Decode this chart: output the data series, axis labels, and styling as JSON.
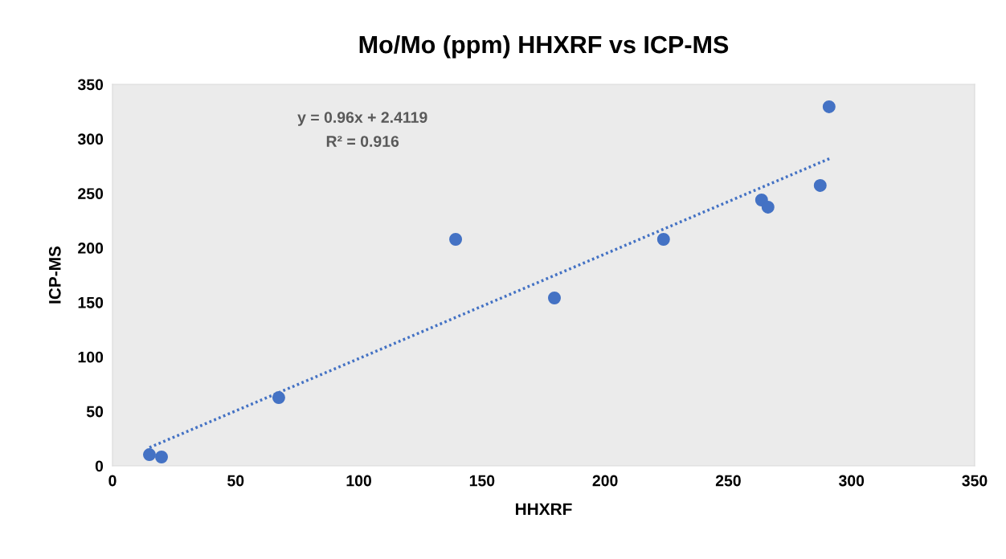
{
  "chart_data": {
    "type": "scatter",
    "title": "Mo/Mo (ppm) HHXRF vs ICP-MS",
    "xlabel": "HHXRF",
    "ylabel": "ICP-MS",
    "series": [
      {
        "color": "#4472c4",
        "x": [
          15.0,
          19.9,
          67.5,
          139.3,
          179.4,
          223.7,
          263.5,
          266.1,
          287.3,
          290.9
        ],
        "values": [
          10.3,
          8.1,
          62.6,
          207.8,
          154.0,
          207.8,
          243.9,
          237.3,
          257.2,
          329.4
        ],
        "marker": "circle"
      },
      {
        "type": "line",
        "color": "#4472c4",
        "x": [
          15,
          291
        ],
        "values": [
          16.8,
          281.8
        ],
        "line_style": "dotted",
        "marker": "none"
      }
    ],
    "annotations": [
      "y = 0.96x + 2.4119",
      "R² = 0.916"
    ],
    "xlim": [
      0,
      350
    ],
    "xticks": [
      0,
      50,
      100,
      150,
      200,
      250,
      300,
      350
    ],
    "ylim": [
      0,
      350
    ],
    "yticks": [
      0,
      50,
      100,
      150,
      200,
      250,
      300,
      350
    ],
    "grid": false,
    "legend": false
  }
}
